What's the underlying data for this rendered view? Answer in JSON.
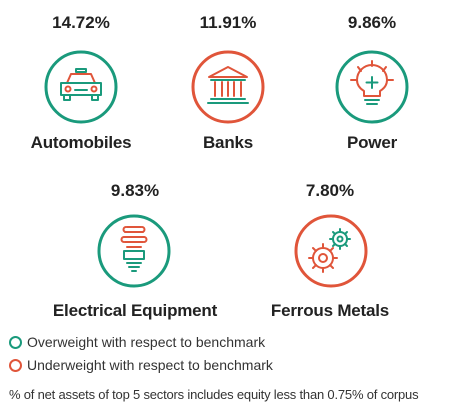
{
  "chart_data": {
    "type": "table",
    "sectors": [
      {
        "name": "Automobiles",
        "value_label": "14.72%",
        "value": 14.72,
        "weighting": "overweight",
        "icon": "car-icon"
      },
      {
        "name": "Banks",
        "value_label": "11.91%",
        "value": 11.91,
        "weighting": "underweight",
        "icon": "bank-building-icon"
      },
      {
        "name": "Power",
        "value_label": "9.86%",
        "value": 9.86,
        "weighting": "overweight",
        "icon": "light-bulb-icon"
      },
      {
        "name": "Electrical Equipment",
        "value_label": "9.83%",
        "value": 9.83,
        "weighting": "overweight",
        "icon": "cfl-bulb-icon"
      },
      {
        "name": "Ferrous Metals",
        "value_label": "7.80%",
        "value": 7.8,
        "weighting": "underweight",
        "icon": "gears-icon"
      }
    ]
  },
  "colors": {
    "overweight": "#1a9a7c",
    "underweight": "#e0553a",
    "text": "#222222"
  },
  "legend": {
    "overweight_label": "Overweight with respect to benchmark",
    "underweight_label": "Underweight with respect to benchmark"
  },
  "footnote": "% of net assets of top 5 sectors includes equity less than 0.75% of corpus"
}
